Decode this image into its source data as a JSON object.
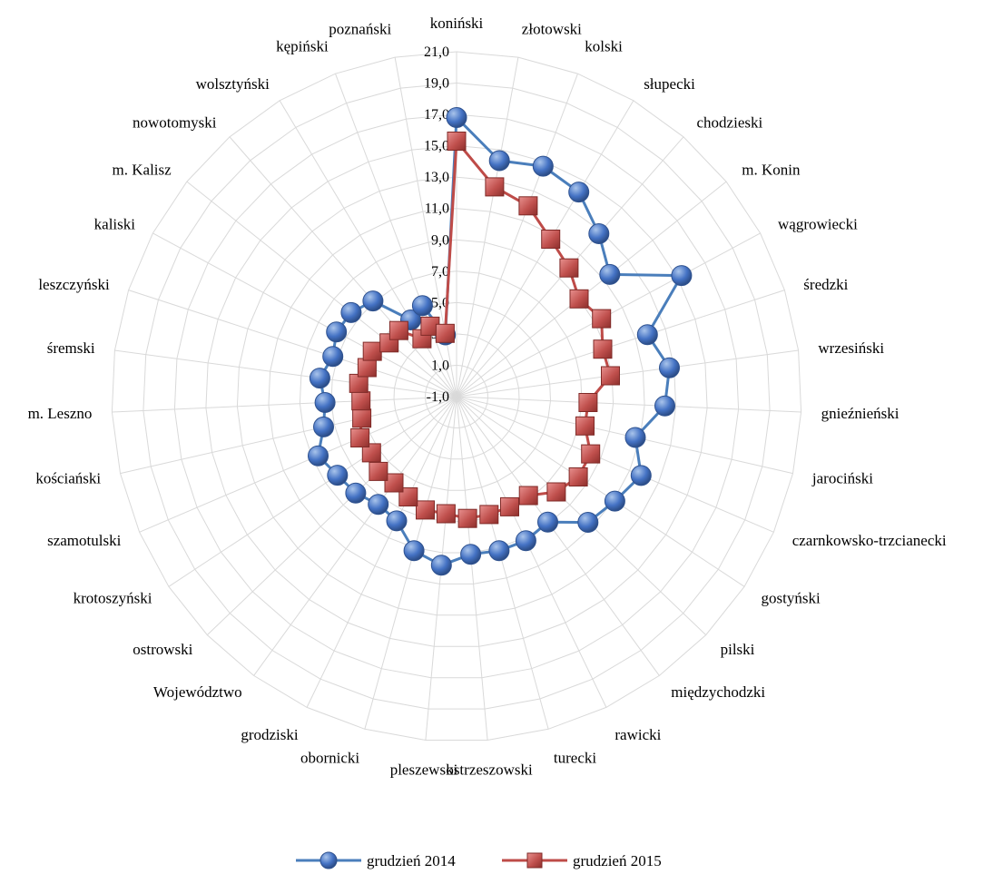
{
  "chart_data": {
    "type": "radar",
    "title": "",
    "categories": [
      "koniński",
      "złotowski",
      "kolski",
      "słupecki",
      "chodzieski",
      "m. Konin",
      "wągrowiecki",
      "średzki",
      "wrzesiński",
      "gnieźnieński",
      "jarociński",
      "czarnkowsko-trzcianecki",
      "gostyński",
      "pilski",
      "międzychodzki",
      "rawicki",
      "turecki",
      "ostrzeszowski",
      "pleszewski",
      "obornicki",
      "grodziski",
      "Województwo",
      "ostrowski",
      "krotoszyński",
      "szamotulski",
      "kościański",
      "m. Leszno",
      "śremski",
      "leszczyński",
      "kaliski",
      "m. Kalisz",
      "nowotomyski",
      "wolsztyński",
      "kępiński",
      "poznański"
    ],
    "axis": {
      "min": -1,
      "max": 21,
      "step": 2,
      "tick_labels": [
        "-1,0",
        "1,0",
        "3,0",
        "5,0",
        "7,0",
        "9,0",
        "11,0",
        "13,0",
        "15,0",
        "17,0",
        "19,0",
        "21,0"
      ]
    },
    "series": [
      {
        "name": "grudzień 2014",
        "color": "#4472C4",
        "line_color": "#4A7EBB",
        "marker": "circle",
        "values": [
          16.8,
          14.3,
          14.7,
          14.2,
          12.8,
          11.5,
          15.3,
          11.8,
          12.7,
          12.3,
          10.7,
          11.8,
          11.1,
          10.6,
          8.9,
          9.2,
          9.2,
          9.1,
          9.8,
          9.2,
          7.8,
          7.5,
          7.9,
          8.1,
          8.6,
          7.7,
          7.4,
          7.8,
          7.3,
          7.7,
          7.6,
          7.1,
          4.7,
          5.2,
          3.0
        ]
      },
      {
        "name": "grudzień 2015",
        "color": "#C0504D",
        "line_color": "#BE4B48",
        "marker": "square",
        "values": [
          15.3,
          12.6,
          12.0,
          10.7,
          9.9,
          9.0,
          9.5,
          8.8,
          8.9,
          7.4,
          7.4,
          8.3,
          8.3,
          7.8,
          6.8,
          6.8,
          6.8,
          6.8,
          6.5,
          6.5,
          6.1,
          5.8,
          5.9,
          5.5,
          5.7,
          5.2,
          5.1,
          5.3,
          5.0,
          5.1,
          4.5,
          4.6,
          3.3,
          3.8,
          3.1
        ]
      }
    ],
    "legend": {
      "position": "bottom"
    },
    "grid": true
  }
}
